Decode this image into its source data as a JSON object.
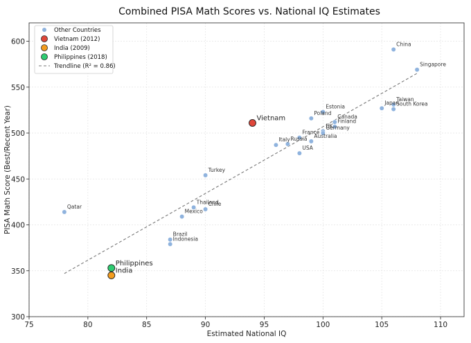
{
  "chart_data": {
    "type": "scatter",
    "title": "Combined PISA Math Scores vs. National IQ Estimates",
    "xlabel": "Estimated National IQ",
    "ylabel": "PISA Math Score (Best/Recent Year)",
    "xlim": [
      75,
      112
    ],
    "ylim": [
      300,
      620
    ],
    "xticks": [
      75,
      80,
      85,
      90,
      95,
      100,
      105,
      110
    ],
    "yticks": [
      300,
      350,
      400,
      450,
      500,
      550,
      600
    ],
    "grid": true,
    "legend_position": "top-left",
    "colors": {
      "others": "#8fb3de",
      "vietnam": "#e0473a",
      "india": "#f39c1f",
      "philippines": "#2ecc71",
      "trend": "#777777"
    },
    "series": [
      {
        "name": "Other Countries",
        "points": [
          {
            "label": "China",
            "x": 106,
            "y": 591
          },
          {
            "label": "Singapore",
            "x": 108,
            "y": 569
          },
          {
            "label": "Taiwan",
            "x": 106,
            "y": 531
          },
          {
            "label": "Japan",
            "x": 105,
            "y": 527
          },
          {
            "label": "South Korea",
            "x": 106,
            "y": 526
          },
          {
            "label": "Estonia",
            "x": 100,
            "y": 523
          },
          {
            "label": "Poland",
            "x": 99,
            "y": 516
          },
          {
            "label": "Canada",
            "x": 101,
            "y": 512
          },
          {
            "label": "Finland",
            "x": 101,
            "y": 507
          },
          {
            "label": "UK",
            "x": 100,
            "y": 502
          },
          {
            "label": "Germany",
            "x": 100,
            "y": 500
          },
          {
            "label": "France",
            "x": 98,
            "y": 495
          },
          {
            "label": "Australia",
            "x": 99,
            "y": 491
          },
          {
            "label": "Russia",
            "x": 97,
            "y": 488
          },
          {
            "label": "Italy",
            "x": 96,
            "y": 487
          },
          {
            "label": "USA",
            "x": 98,
            "y": 478
          },
          {
            "label": "Turkey",
            "x": 90,
            "y": 454
          },
          {
            "label": "Thailand",
            "x": 89,
            "y": 419
          },
          {
            "label": "Chile",
            "x": 90,
            "y": 417
          },
          {
            "label": "Mexico",
            "x": 88,
            "y": 409
          },
          {
            "label": "Qatar",
            "x": 78,
            "y": 414
          },
          {
            "label": "Brazil",
            "x": 87,
            "y": 384
          },
          {
            "label": "Indonesia",
            "x": 87,
            "y": 379
          }
        ]
      },
      {
        "name": "Vietnam (2012)",
        "points": [
          {
            "label": "Vietnam",
            "x": 94,
            "y": 511
          }
        ]
      },
      {
        "name": "India (2009)",
        "points": [
          {
            "label": "India",
            "x": 82,
            "y": 345
          }
        ]
      },
      {
        "name": "Philippines (2018)",
        "points": [
          {
            "label": "Philippines",
            "x": 82,
            "y": 353
          }
        ]
      }
    ],
    "trendline": {
      "name": "Trendline (R² = 0.86)",
      "x": [
        78,
        108
      ],
      "y": [
        347,
        565
      ]
    }
  }
}
